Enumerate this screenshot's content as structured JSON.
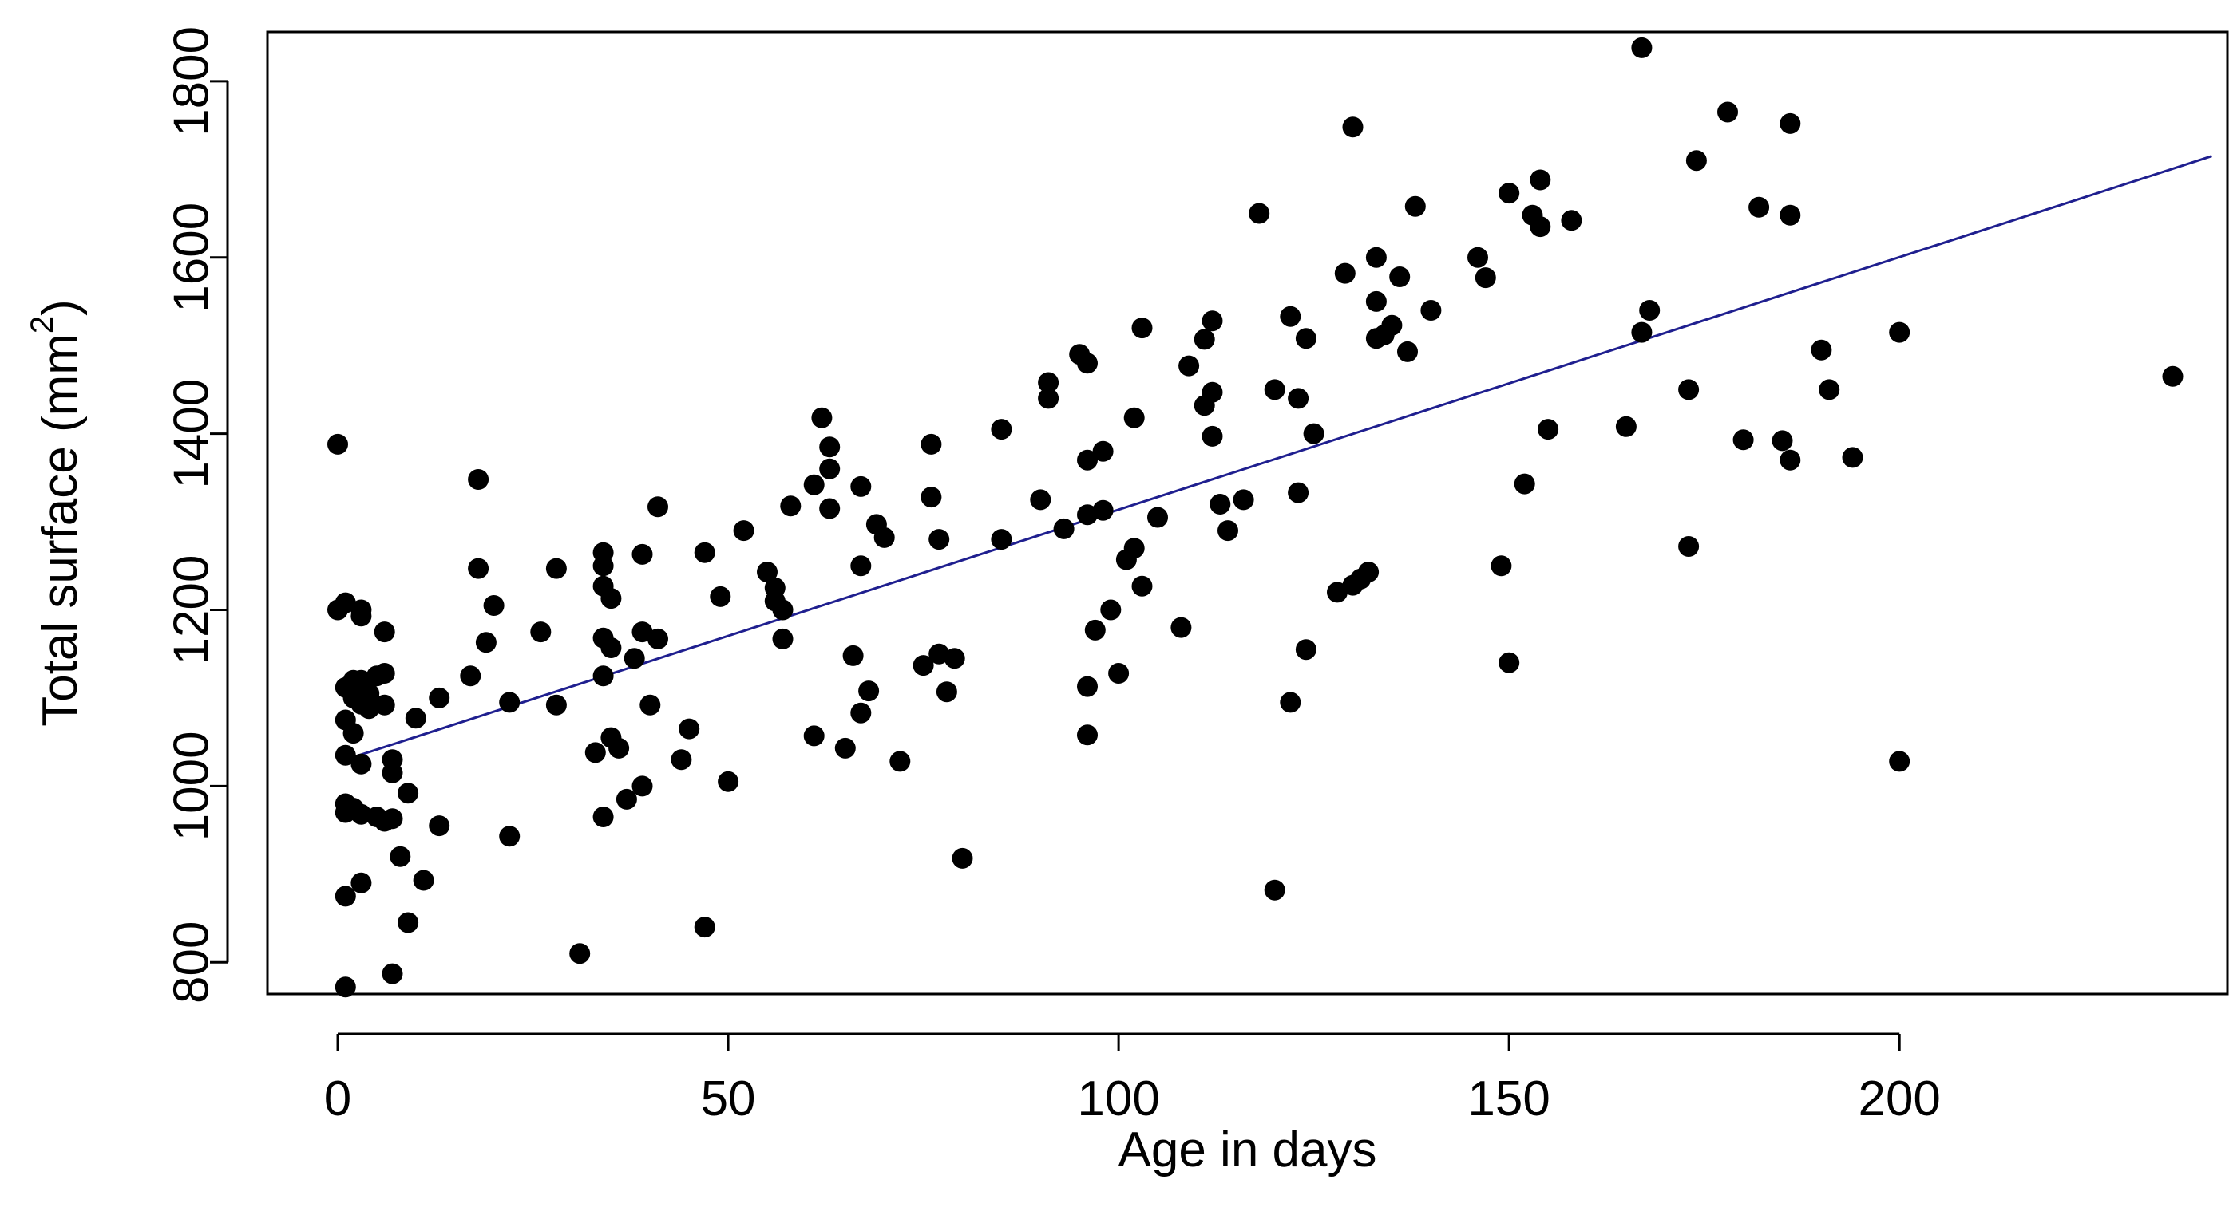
{
  "chart_data": {
    "type": "scatter",
    "title": "",
    "xlabel": "Age in days",
    "ylabel": "Total surface (mm2)",
    "ylabel_parts": {
      "base": "Total surface (mm",
      "sup": "2",
      "end": ")"
    },
    "xlim": [
      -9,
      242
    ],
    "ylim": [
      764,
      1856
    ],
    "xticks": [
      0,
      50,
      100,
      150,
      200
    ],
    "yticks": [
      800,
      1000,
      1200,
      1400,
      1600,
      1800
    ],
    "grid": false,
    "legend": "none",
    "point_color": "#000000",
    "line_color": "#1f1f8f",
    "series": [
      {
        "points": [
          [
            0,
            1388
          ],
          [
            0,
            1200
          ],
          [
            1,
            1208
          ],
          [
            1,
            1112
          ],
          [
            1,
            1075
          ],
          [
            1,
            1035
          ],
          [
            1,
            980
          ],
          [
            1,
            970
          ],
          [
            1,
            875
          ],
          [
            1,
            772
          ],
          [
            2,
            1120
          ],
          [
            2,
            1100
          ],
          [
            2,
            1060
          ],
          [
            2,
            975
          ],
          [
            3,
            1200
          ],
          [
            3,
            1193
          ],
          [
            3,
            1120
          ],
          [
            3,
            1093
          ],
          [
            3,
            1025
          ],
          [
            3,
            968
          ],
          [
            3,
            890
          ],
          [
            4,
            1105
          ],
          [
            4,
            1088
          ],
          [
            5,
            1125
          ],
          [
            5,
            965
          ],
          [
            6,
            1175
          ],
          [
            6,
            1128
          ],
          [
            6,
            1092
          ],
          [
            6,
            960
          ],
          [
            7,
            1030
          ],
          [
            7,
            1015
          ],
          [
            7,
            963
          ],
          [
            7,
            787
          ],
          [
            8,
            920
          ],
          [
            9,
            992
          ],
          [
            9,
            845
          ],
          [
            10,
            1077
          ],
          [
            11,
            893
          ],
          [
            13,
            1100
          ],
          [
            13,
            955
          ],
          [
            17,
            1125
          ],
          [
            18,
            1348
          ],
          [
            18,
            1247
          ],
          [
            19,
            1163
          ],
          [
            20,
            1205
          ],
          [
            22,
            1095
          ],
          [
            22,
            943
          ],
          [
            26,
            1175
          ],
          [
            28,
            1247
          ],
          [
            28,
            1092
          ],
          [
            31,
            810
          ],
          [
            33,
            1038
          ],
          [
            34,
            1265
          ],
          [
            34,
            1250
          ],
          [
            34,
            1227
          ],
          [
            34,
            1168
          ],
          [
            34,
            1125
          ],
          [
            34,
            965
          ],
          [
            35,
            1213
          ],
          [
            35,
            1157
          ],
          [
            35,
            1055
          ],
          [
            36,
            1043
          ],
          [
            37,
            985
          ],
          [
            38,
            1145
          ],
          [
            39,
            1263
          ],
          [
            39,
            1175
          ],
          [
            39,
            1000
          ],
          [
            40,
            1092
          ],
          [
            41,
            1317
          ],
          [
            41,
            1167
          ],
          [
            44,
            1030
          ],
          [
            45,
            1065
          ],
          [
            47,
            1265
          ],
          [
            47,
            840
          ],
          [
            49,
            1215
          ],
          [
            50,
            1005
          ],
          [
            52,
            1290
          ],
          [
            55,
            1243
          ],
          [
            56,
            1225
          ],
          [
            56,
            1210
          ],
          [
            57,
            1200
          ],
          [
            57,
            1167
          ],
          [
            58,
            1318
          ],
          [
            61,
            1342
          ],
          [
            61,
            1057
          ],
          [
            62,
            1418
          ],
          [
            63,
            1385
          ],
          [
            63,
            1360
          ],
          [
            63,
            1315
          ],
          [
            65,
            1043
          ],
          [
            66,
            1148
          ],
          [
            67,
            1340
          ],
          [
            67,
            1250
          ],
          [
            67,
            1083
          ],
          [
            68,
            1108
          ],
          [
            69,
            1297
          ],
          [
            70,
            1282
          ],
          [
            72,
            1028
          ],
          [
            75,
            1137
          ],
          [
            76,
            1388
          ],
          [
            76,
            1328
          ],
          [
            77,
            1280
          ],
          [
            77,
            1150
          ],
          [
            78,
            1107
          ],
          [
            79,
            1145
          ],
          [
            80,
            918
          ],
          [
            85,
            1405
          ],
          [
            85,
            1280
          ],
          [
            90,
            1325
          ],
          [
            91,
            1458
          ],
          [
            91,
            1440
          ],
          [
            93,
            1292
          ],
          [
            95,
            1490
          ],
          [
            96,
            1480
          ],
          [
            96,
            1370
          ],
          [
            96,
            1308
          ],
          [
            96,
            1113
          ],
          [
            96,
            1058
          ],
          [
            97,
            1177
          ],
          [
            98,
            1380
          ],
          [
            98,
            1313
          ],
          [
            99,
            1200
          ],
          [
            100,
            1128
          ],
          [
            101,
            1257
          ],
          [
            102,
            1418
          ],
          [
            102,
            1270
          ],
          [
            103,
            1520
          ],
          [
            103,
            1227
          ],
          [
            105,
            1305
          ],
          [
            108,
            1180
          ],
          [
            109,
            1477
          ],
          [
            111,
            1507
          ],
          [
            111,
            1432
          ],
          [
            112,
            1528
          ],
          [
            112,
            1447
          ],
          [
            112,
            1397
          ],
          [
            113,
            1320
          ],
          [
            114,
            1290
          ],
          [
            116,
            1325
          ],
          [
            118,
            1650
          ],
          [
            120,
            1450
          ],
          [
            120,
            882
          ],
          [
            122,
            1533
          ],
          [
            122,
            1095
          ],
          [
            123,
            1440
          ],
          [
            123,
            1333
          ],
          [
            124,
            1508
          ],
          [
            124,
            1155
          ],
          [
            125,
            1400
          ],
          [
            128,
            1220
          ],
          [
            129,
            1582
          ],
          [
            130,
            1748
          ],
          [
            130,
            1228
          ],
          [
            131,
            1235
          ],
          [
            132,
            1243
          ],
          [
            133,
            1600
          ],
          [
            133,
            1550
          ],
          [
            133,
            1508
          ],
          [
            134,
            1512
          ],
          [
            135,
            1523
          ],
          [
            136,
            1578
          ],
          [
            137,
            1493
          ],
          [
            138,
            1658
          ],
          [
            140,
            1540
          ],
          [
            146,
            1600
          ],
          [
            147,
            1577
          ],
          [
            149,
            1250
          ],
          [
            150,
            1673
          ],
          [
            150,
            1140
          ],
          [
            152,
            1343
          ],
          [
            153,
            1648
          ],
          [
            154,
            1688
          ],
          [
            154,
            1635
          ],
          [
            155,
            1405
          ],
          [
            158,
            1642
          ],
          [
            165,
            1408
          ],
          [
            167,
            1838
          ],
          [
            167,
            1515
          ],
          [
            168,
            1540
          ],
          [
            173,
            1450
          ],
          [
            173,
            1272
          ],
          [
            174,
            1710
          ],
          [
            178,
            1765
          ],
          [
            180,
            1393
          ],
          [
            182,
            1657
          ],
          [
            185,
            1392
          ],
          [
            186,
            1752
          ],
          [
            186,
            1648
          ],
          [
            186,
            1370
          ],
          [
            190,
            1495
          ],
          [
            191,
            1450
          ],
          [
            194,
            1373
          ],
          [
            200,
            1515
          ],
          [
            200,
            1028
          ],
          [
            235,
            1465
          ]
        ]
      },
      {
        "type": "line",
        "points": [
          [
            1,
            1030
          ],
          [
            240,
            1715
          ]
        ]
      }
    ]
  }
}
